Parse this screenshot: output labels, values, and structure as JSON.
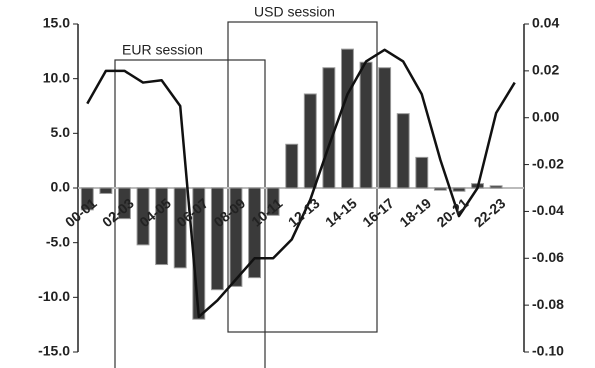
{
  "chart_data": {
    "type": "bar_line",
    "categories": [
      "00-01",
      null,
      "02-03",
      null,
      "04-05",
      null,
      "06-07",
      null,
      "08-09",
      null,
      "10-11",
      null,
      "12-13",
      null,
      "14-15",
      null,
      "16-17",
      null,
      "18-19",
      null,
      "20-21",
      null,
      "22-23",
      null
    ],
    "series": [
      {
        "type": "bar",
        "color": "#3a3a3a",
        "values": [
          -2,
          -0.5,
          -2.8,
          -5.2,
          -7,
          -7.3,
          -12,
          -9.3,
          -9,
          -8.2,
          -2.5,
          4,
          8.6,
          11,
          12.7,
          11.5,
          11,
          6.8,
          2.8,
          -0.2,
          -0.3,
          0.4,
          0.2,
          0
        ]
      },
      {
        "type": "line",
        "axis": "y2",
        "color": "#111111",
        "values": [
          0.006,
          0.02,
          0.02,
          0.015,
          0.016,
          0.005,
          -0.085,
          -0.078,
          -0.069,
          -0.06,
          -0.06,
          -0.052,
          -0.035,
          -0.012,
          0.01,
          0.024,
          0.029,
          0.024,
          0.01,
          -0.018,
          -0.042,
          -0.03,
          0.002,
          0.015
        ]
      }
    ],
    "ylim": [
      -15,
      15
    ],
    "yticks": [
      {
        "value": -15,
        "label": "-15.0"
      },
      {
        "value": -10,
        "label": "-10.0"
      },
      {
        "value": -5,
        "label": "-5.0"
      },
      {
        "value": 0,
        "label": "0.0"
      },
      {
        "value": 5,
        "label": "5.0"
      },
      {
        "value": 10,
        "label": "10.0"
      },
      {
        "value": 15,
        "label": "15.0"
      }
    ],
    "y2lim": [
      -0.1,
      0.04
    ],
    "y2ticks": [
      {
        "value": -0.1,
        "label": "-0.10"
      },
      {
        "value": -0.08,
        "label": "-0.08"
      },
      {
        "value": -0.06,
        "label": "-0.06"
      },
      {
        "value": -0.04,
        "label": "-0.04"
      },
      {
        "value": -0.02,
        "label": "-0.02"
      },
      {
        "value": 0,
        "label": "0.00"
      },
      {
        "value": 0.02,
        "label": "0.02"
      },
      {
        "value": 0.04,
        "label": "0.04"
      }
    ],
    "annotations": [
      "EUR session",
      "USD session"
    ]
  }
}
